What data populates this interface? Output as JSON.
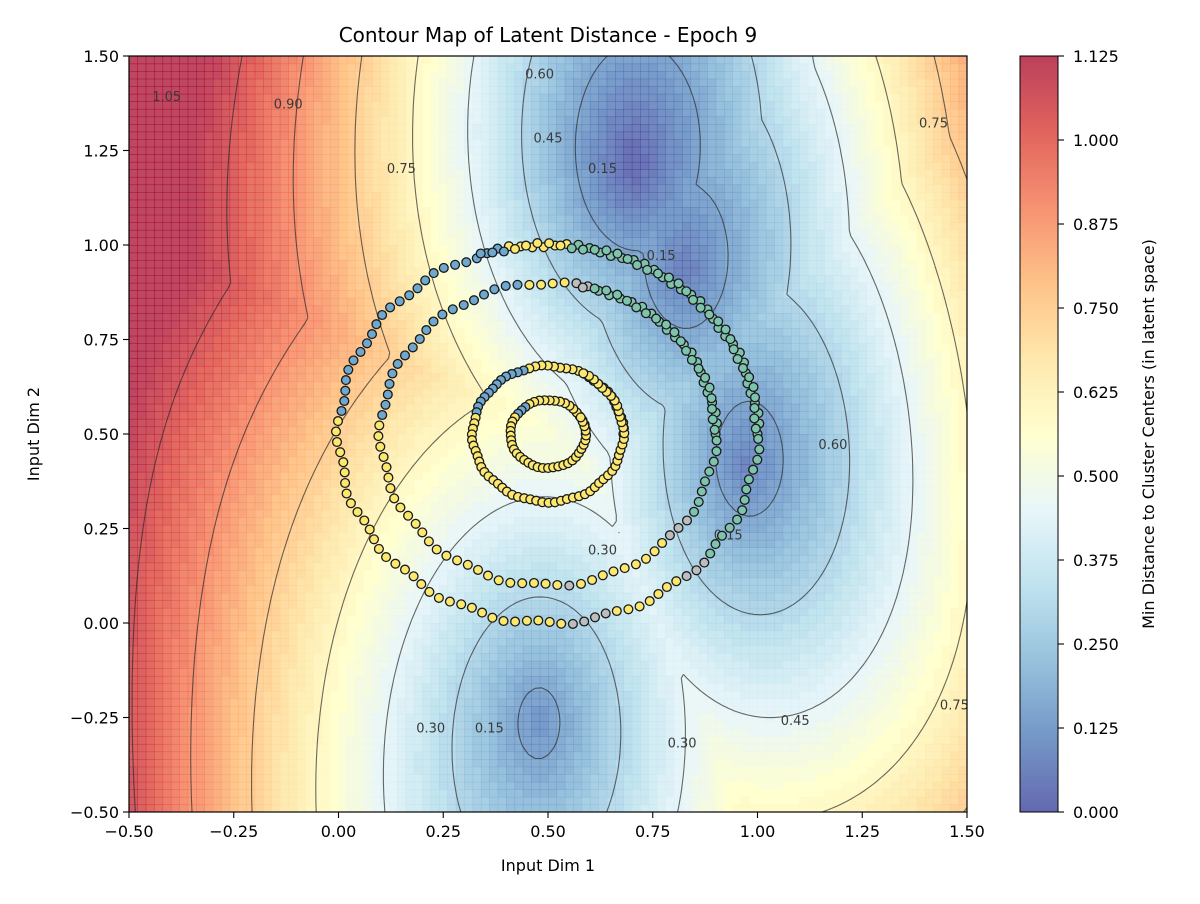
{
  "chart_data": {
    "type": "contour",
    "title": "Contour Map of Latent Distance - Epoch 9",
    "xlabel": "Input Dim 1",
    "ylabel": "Input Dim 2",
    "xlim": [
      -0.5,
      1.5
    ],
    "ylim": [
      -0.5,
      1.5
    ],
    "x_ticks": [
      "−0.50",
      "−0.25",
      "0.00",
      "0.25",
      "0.50",
      "0.75",
      "1.00",
      "1.25",
      "1.50"
    ],
    "y_ticks": [
      "−0.50",
      "−0.25",
      "0.00",
      "0.25",
      "0.50",
      "0.75",
      "1.00",
      "1.25",
      "1.50"
    ],
    "colorbar": {
      "label": "Min Distance to Cluster Centers (in latent space)",
      "range": [
        0.0,
        1.125
      ],
      "ticks": [
        "0.000",
        "0.125",
        "0.250",
        "0.375",
        "0.500",
        "0.625",
        "0.750",
        "0.875",
        "1.000",
        "1.125"
      ],
      "colormap": "RdYlBu_r",
      "colors": [
        "#313695",
        "#4575b4",
        "#74add1",
        "#abd9e9",
        "#e0f3f8",
        "#ffffbf",
        "#fee090",
        "#fdae61",
        "#f46d43",
        "#d73027",
        "#a50026"
      ]
    },
    "contour_levels": [
      0.15,
      0.3,
      0.45,
      0.6,
      0.75,
      0.9,
      1.05
    ],
    "contour_labels": [
      {
        "text": "1.05",
        "x": -0.41,
        "y": 1.39
      },
      {
        "text": "0.90",
        "x": -0.12,
        "y": 1.37
      },
      {
        "text": "0.75",
        "x": 0.15,
        "y": 1.2
      },
      {
        "text": "0.60",
        "x": 0.48,
        "y": 1.45
      },
      {
        "text": "0.45",
        "x": 0.5,
        "y": 1.28
      },
      {
        "text": "0.15",
        "x": 0.63,
        "y": 1.2
      },
      {
        "text": "0.15",
        "x": 0.77,
        "y": 0.97
      },
      {
        "text": "0.30",
        "x": 0.63,
        "y": 0.19
      },
      {
        "text": "0.15",
        "x": 0.93,
        "y": 0.23
      },
      {
        "text": "0.60",
        "x": 1.18,
        "y": 0.47
      },
      {
        "text": "0.75",
        "x": 1.42,
        "y": 1.32
      },
      {
        "text": "0.30",
        "x": 0.22,
        "y": -0.28
      },
      {
        "text": "0.15",
        "x": 0.36,
        "y": -0.28
      },
      {
        "text": "0.30",
        "x": 0.82,
        "y": -0.32
      },
      {
        "text": "0.45",
        "x": 1.09,
        "y": -0.26
      },
      {
        "text": "0.75",
        "x": 1.47,
        "y": -0.22
      }
    ],
    "field_centers": [
      {
        "x": 0.7,
        "y": 1.21,
        "depth": 0.03
      },
      {
        "x": 0.82,
        "y": 0.93,
        "depth": 0.06
      },
      {
        "x": 0.97,
        "y": 0.42,
        "depth": 0.05
      },
      {
        "x": 0.48,
        "y": -0.25,
        "depth": 0.04
      }
    ],
    "scatter_series": [
      {
        "shape": "circle",
        "cx": 0.5,
        "cy": 0.5,
        "r": 0.5,
        "count": 150,
        "color": "#fde86f"
      },
      {
        "shape": "circle",
        "cx": 0.5,
        "cy": 0.5,
        "r": 0.4,
        "count": 110,
        "color": "#fde86f"
      },
      {
        "shape": "circle",
        "cx": 0.5,
        "cy": 0.5,
        "r": 0.18,
        "count": 90,
        "color": "#fde86f"
      },
      {
        "shape": "circle",
        "cx": 0.5,
        "cy": 0.5,
        "r": 0.09,
        "count": 50,
        "color": "#fde86f"
      }
    ],
    "scatter_colors": {
      "near": "#7ec4ac",
      "mid": "#bdbdbd",
      "far": "#6ea8cf",
      "default": "#f7e07a"
    },
    "grid": false,
    "legend": "none"
  }
}
